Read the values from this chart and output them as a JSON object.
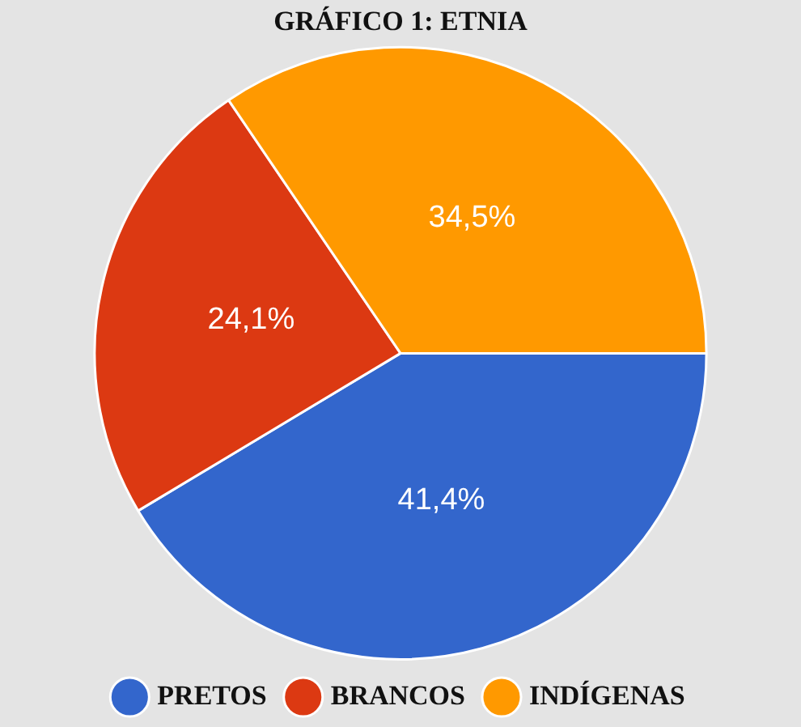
{
  "chart_data": {
    "type": "pie",
    "title": "GRÁFICO 1: ETNIA",
    "categories": [
      "PRETOS",
      "BRANCOS",
      "INDÍGENAS"
    ],
    "values": [
      41.4,
      24.1,
      34.5
    ],
    "colors": [
      "#3366cc",
      "#dc3912",
      "#ff9900"
    ],
    "value_labels": [
      "41,4%",
      "24,1%",
      "34,5%"
    ],
    "legend": "bottom"
  }
}
